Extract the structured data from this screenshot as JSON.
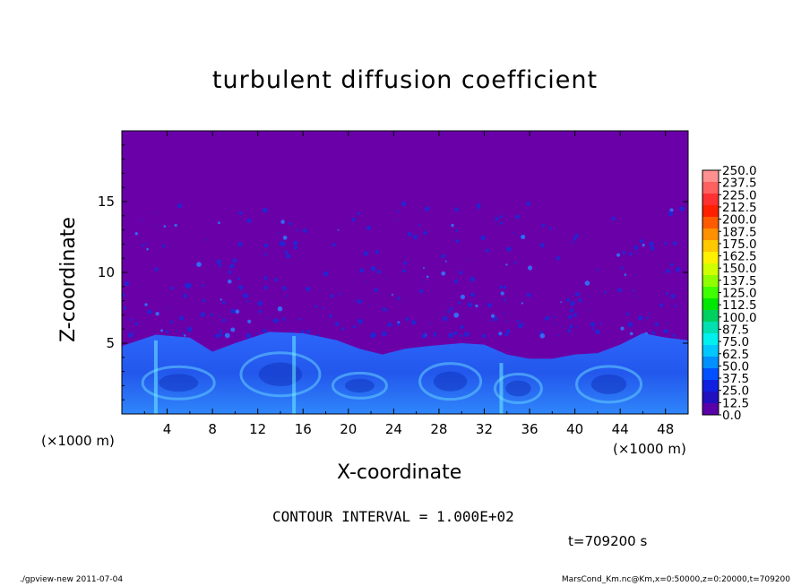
{
  "title": "turbulent diffusion coefficient",
  "xlabel": "X-coordinate",
  "ylabel": "Z-coordinate",
  "xunit_left": "(×1000 m)",
  "xunit_right": "(×1000 m)",
  "contour_interval": "CONTOUR INTERVAL = 1.000E+02",
  "time_label": "t=709200 s",
  "footer_left": "./gpview-new   2011-07-04",
  "footer_right": "MarsCond_Km.nc@Km,x=0:50000,z=0:20000,t=709200",
  "colors": {
    "background_field": "#6a00a8",
    "plume": "#2a6bff",
    "highlight": "#3ad0ff"
  },
  "chart_data": {
    "type": "heatmap",
    "title": "turbulent diffusion coefficient",
    "xlabel": "X-coordinate",
    "ylabel": "Z-coordinate",
    "xlim": [
      0,
      50
    ],
    "ylim": [
      0,
      20
    ],
    "x_ticks": [
      4,
      8,
      12,
      16,
      20,
      24,
      28,
      32,
      36,
      40,
      44,
      48
    ],
    "y_ticks": [
      5,
      10,
      15
    ],
    "colorbar": {
      "levels": [
        "250.0",
        "237.5",
        "225.0",
        "212.5",
        "200.0",
        "187.5",
        "175.0",
        "162.5",
        "150.0",
        "137.5",
        "125.0",
        "112.5",
        "100.0",
        "87.5",
        "75.0",
        "62.5",
        "50.0",
        "37.5",
        "25.0",
        "12.5",
        "0.0"
      ],
      "colors": [
        "#ff9090",
        "#ff6060",
        "#ff3030",
        "#ff2000",
        "#ff5a00",
        "#ff9000",
        "#ffc800",
        "#fff000",
        "#d0ff00",
        "#90ff00",
        "#40ff00",
        "#00e800",
        "#00d060",
        "#00e0b0",
        "#00f0f0",
        "#00c8ff",
        "#0090ff",
        "#0050ff",
        "#1020e0",
        "#2010c0",
        "#5a00a8"
      ]
    },
    "boundary_layer_top": [
      [
        0,
        4.8
      ],
      [
        3,
        5.6
      ],
      [
        6,
        5.4
      ],
      [
        8,
        4.4
      ],
      [
        10,
        5.0
      ],
      [
        13,
        5.8
      ],
      [
        16,
        5.7
      ],
      [
        19,
        5.2
      ],
      [
        21,
        4.6
      ],
      [
        23,
        4.2
      ],
      [
        25,
        4.6
      ],
      [
        27,
        4.8
      ],
      [
        30,
        5.0
      ],
      [
        32,
        4.9
      ],
      [
        34,
        4.2
      ],
      [
        36,
        3.9
      ],
      [
        38,
        3.9
      ],
      [
        40,
        4.2
      ],
      [
        42,
        4.3
      ],
      [
        44,
        4.9
      ],
      [
        46,
        5.7
      ],
      [
        48,
        5.4
      ],
      [
        50,
        5.2
      ]
    ]
  }
}
